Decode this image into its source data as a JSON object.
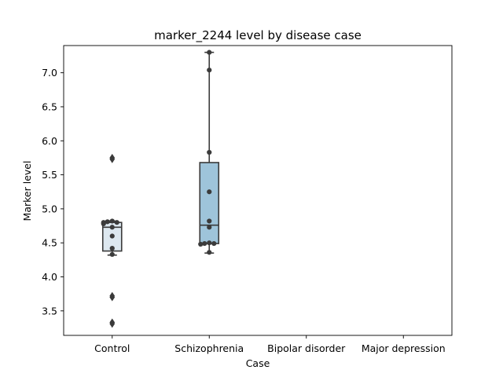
{
  "chart_data": {
    "type": "box",
    "title": "marker_2244 level by disease case",
    "xlabel": "Case",
    "ylabel": "Marker level",
    "categories": [
      "Control",
      "Schizophrenia",
      "Bipolar disorder",
      "Major depression"
    ],
    "ylim": [
      3.14,
      7.4
    ],
    "yticks": [
      3.5,
      4.0,
      4.5,
      5.0,
      5.5,
      6.0,
      6.5,
      7.0
    ],
    "ytick_labels": [
      "3.5",
      "4.0",
      "4.5",
      "5.0",
      "5.5",
      "6.0",
      "6.5",
      "7.0"
    ],
    "grid": false,
    "boxes": [
      {
        "category": "Control",
        "whisker_low": 4.32,
        "q1": 4.38,
        "median": 4.73,
        "q3": 4.8,
        "whisker_high": 4.82,
        "fliers": [
          5.75,
          5.73,
          3.72,
          3.7,
          3.33,
          3.31
        ],
        "color": "#dde8f0"
      },
      {
        "category": "Schizophrenia",
        "whisker_low": 4.35,
        "q1": 4.49,
        "median": 4.76,
        "q3": 5.68,
        "whisker_high": 7.3,
        "fliers": [],
        "color": "#9ec4da"
      }
    ],
    "points": [
      {
        "category": "Control",
        "values": [
          4.82,
          4.81,
          4.8,
          4.8,
          4.78,
          4.73,
          4.6,
          4.42,
          4.33
        ]
      },
      {
        "category": "Schizophrenia",
        "values": [
          7.3,
          7.04,
          5.83,
          5.25,
          4.82,
          4.73,
          4.5,
          4.49,
          4.49,
          4.48,
          4.36
        ]
      }
    ],
    "colors": {
      "box_edge": "#3a3a3a",
      "point": "#3b3b3b"
    }
  }
}
